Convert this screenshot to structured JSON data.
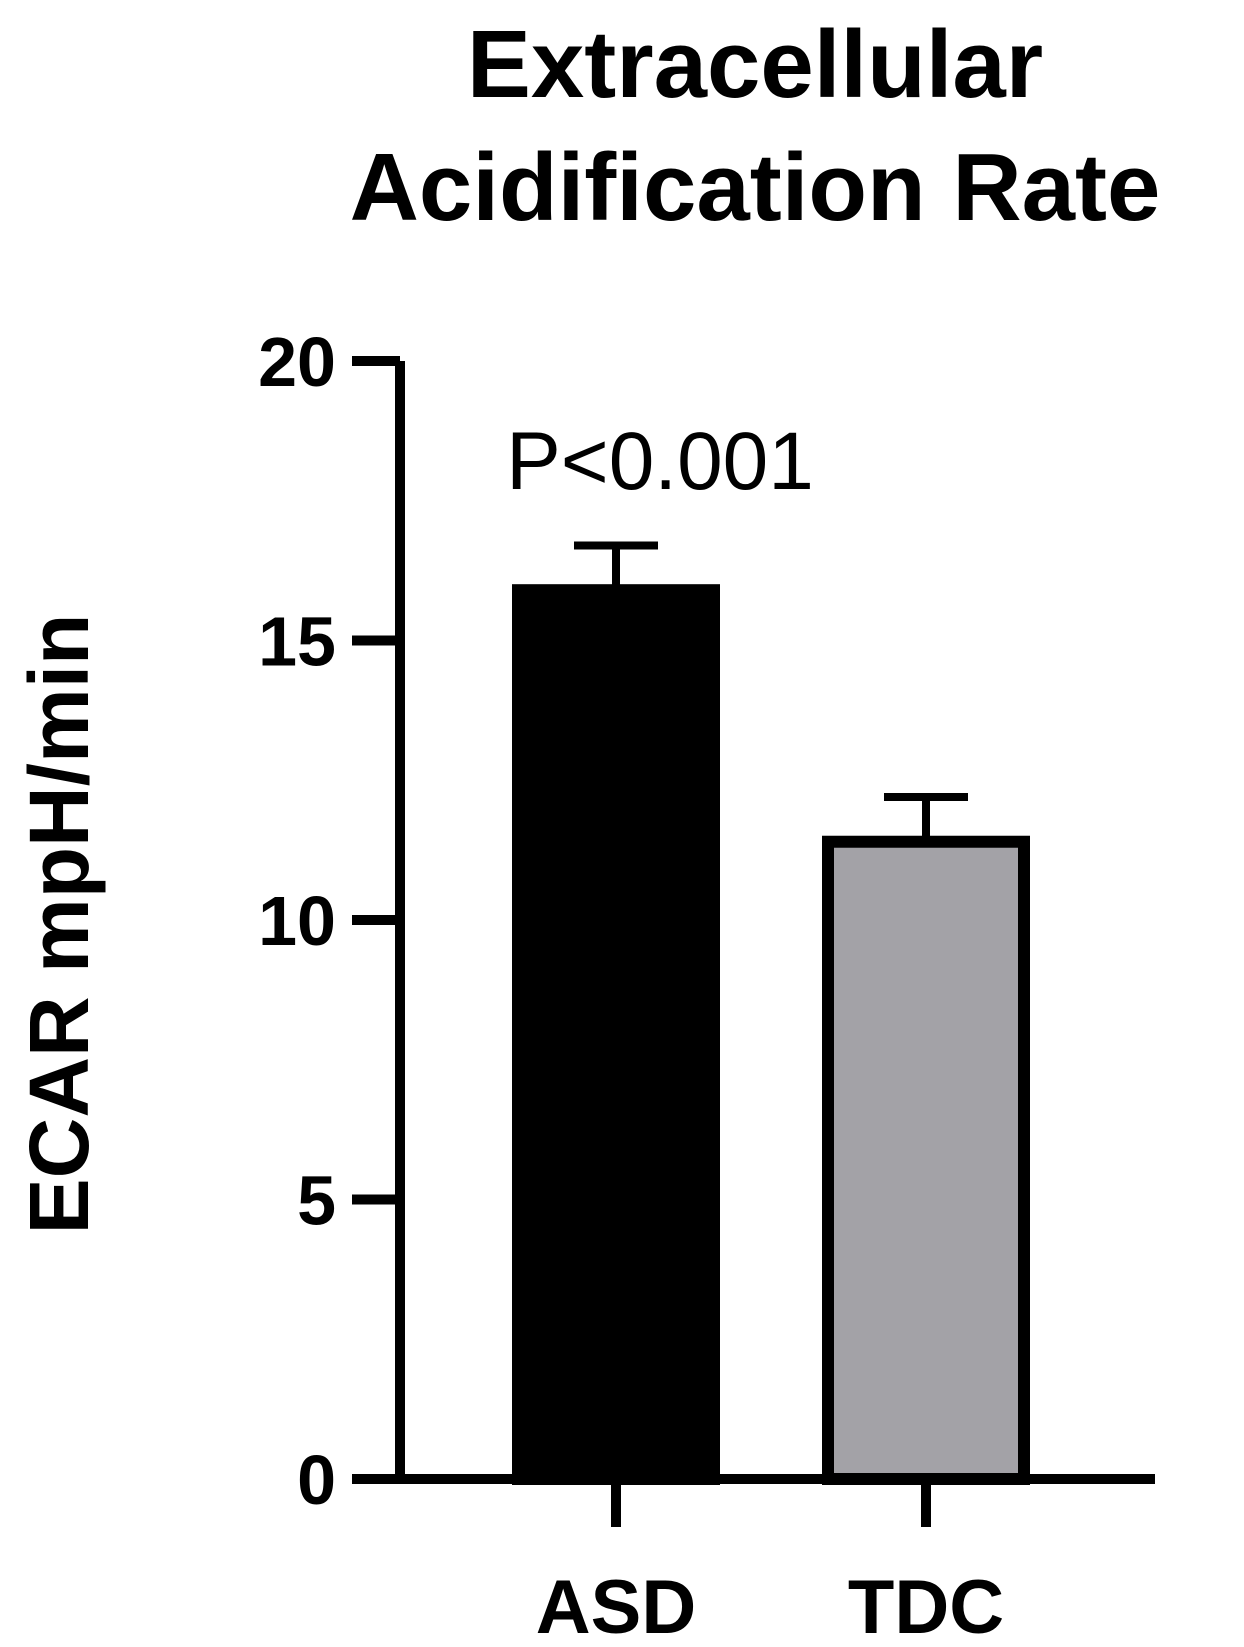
{
  "chart_data": {
    "type": "bar",
    "title_lines": [
      "Extracellular",
      "Acidification Rate"
    ],
    "ylabel": "ECAR mpH/min",
    "xlabel": "",
    "ylim": [
      0,
      20
    ],
    "yticks": [
      0,
      5,
      10,
      15,
      20
    ],
    "categories": [
      "ASD",
      "TDC"
    ],
    "values": [
      15.9,
      11.4
    ],
    "errors": [
      0.8,
      0.8
    ],
    "bar_colors": [
      "#000000",
      "#a3a2a7"
    ],
    "bar_edge_color": "#000000",
    "annotation": "P<0.001",
    "grid": false,
    "legend": "none"
  }
}
